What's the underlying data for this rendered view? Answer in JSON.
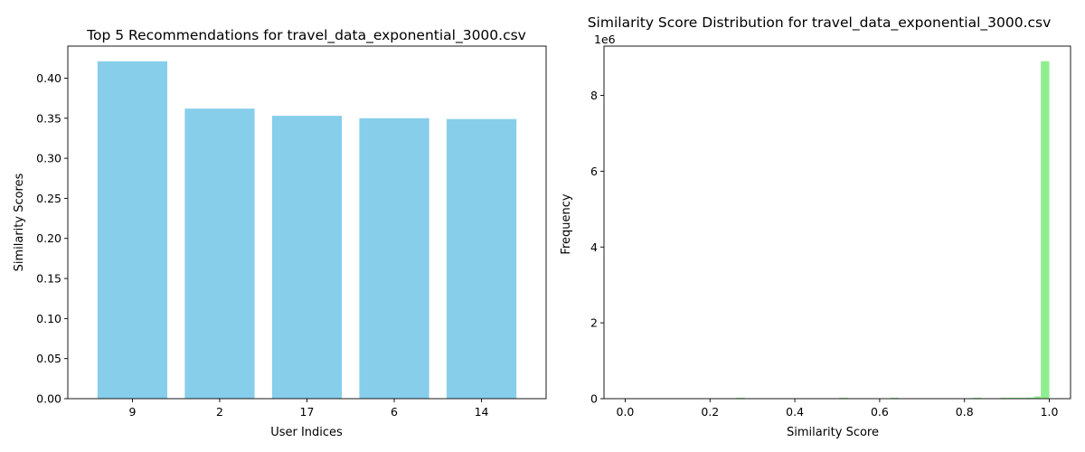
{
  "chart_data": [
    {
      "type": "bar",
      "title": "Top 5 Recommendations for travel_data_exponential_3000.csv",
      "xlabel": "User Indices",
      "ylabel": "Similarity Scores",
      "categories": [
        "9",
        "2",
        "17",
        "6",
        "14"
      ],
      "values": [
        0.421,
        0.362,
        0.353,
        0.35,
        0.349
      ],
      "ylim": [
        0,
        0.44
      ],
      "yticks": [
        0.0,
        0.05,
        0.1,
        0.15,
        0.2,
        0.25,
        0.3,
        0.35,
        0.4
      ],
      "ytick_labels": [
        "0.00",
        "0.05",
        "0.10",
        "0.15",
        "0.20",
        "0.25",
        "0.30",
        "0.35",
        "0.40"
      ],
      "color": "#87ceeb",
      "grid": false
    },
    {
      "type": "bar",
      "subtype": "histogram",
      "title": "Similarity Score Distribution for travel_data_exponential_3000.csv",
      "xlabel": "Similarity Score",
      "ylabel": "Frequency",
      "scale_note": "1e6",
      "bins": [
        {
          "x0": 0.262,
          "x1": 0.282,
          "value": 6000
        },
        {
          "x0": 0.505,
          "x1": 0.525,
          "value": 8000
        },
        {
          "x0": 0.625,
          "x1": 0.645,
          "value": 10000
        },
        {
          "x0": 0.82,
          "x1": 0.84,
          "value": 8000
        },
        {
          "x0": 0.885,
          "x1": 0.905,
          "value": 12000
        },
        {
          "x0": 0.905,
          "x1": 0.925,
          "value": 16000
        },
        {
          "x0": 0.925,
          "x1": 0.945,
          "value": 20000
        },
        {
          "x0": 0.945,
          "x1": 0.965,
          "value": 30000
        },
        {
          "x0": 0.965,
          "x1": 0.98,
          "value": 60000
        },
        {
          "x0": 0.98,
          "x1": 1.0,
          "value": 8900000
        }
      ],
      "xlim": [
        -0.05,
        1.05
      ],
      "ylim": [
        0,
        9300000
      ],
      "xticks": [
        0.0,
        0.2,
        0.4,
        0.6,
        0.8,
        1.0
      ],
      "xtick_labels": [
        "0.0",
        "0.2",
        "0.4",
        "0.6",
        "0.8",
        "1.0"
      ],
      "yticks": [
        0,
        2000000,
        4000000,
        6000000,
        8000000
      ],
      "ytick_labels": [
        "0",
        "2",
        "4",
        "6",
        "8"
      ],
      "color": "#90ee90",
      "grid": false
    }
  ]
}
